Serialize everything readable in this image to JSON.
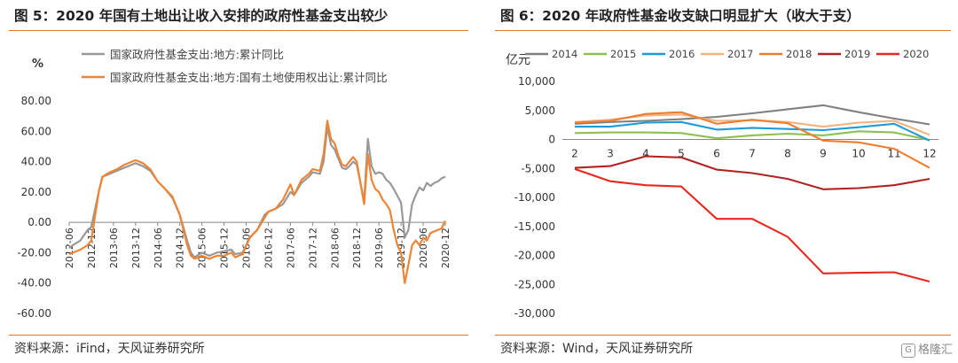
{
  "left": {
    "title": "图 5：2020 年国有土地出让收入安排的政府性基金支出较少",
    "source": "资料来源：iFind，天风证券研究所"
  },
  "right": {
    "title": "图 6：2020 年政府性基金收支缺口明显扩大（收大于支）",
    "source": "资料来源：Wind，天风证券研究所"
  },
  "watermark": {
    "text": "格隆汇",
    "icon": "G"
  },
  "chart_data": [
    {
      "type": "line",
      "unit_label": "%",
      "ylim": [
        -60,
        80
      ],
      "yticks": [
        80,
        60,
        40,
        20,
        0,
        -20,
        -40,
        -60
      ],
      "ytick_labels": [
        "80.00",
        "60.00",
        "40.00",
        "20.00",
        "0.00",
        "-20.00",
        "-40.00",
        "-60.00"
      ],
      "xlim": [
        2012.4167,
        2020.9167
      ],
      "xticks": [
        2012.4167,
        2012.9167,
        2013.4167,
        2013.9167,
        2014.4167,
        2014.9167,
        2015.4167,
        2015.9167,
        2016.4167,
        2016.9167,
        2017.4167,
        2017.9167,
        2018.4167,
        2018.9167,
        2019.4167,
        2019.9167,
        2020.4167,
        2020.9167
      ],
      "xtick_labels": [
        "2012-06",
        "2012-12",
        "2013-06",
        "2013-12",
        "2014-06",
        "2014-12",
        "2015-06",
        "2015-12",
        "2016-06",
        "2016-12",
        "2017-06",
        "2017-12",
        "2018-06",
        "2018-12",
        "2019-06",
        "2019-12",
        "2020-06",
        "2020-12"
      ],
      "legend_position": "top-left",
      "series": [
        {
          "name": "国家政府性基金支出:地方:累计同比",
          "color": "#999999",
          "points": [
            [
              2012.4167,
              -17
            ],
            [
              2012.5,
              -15
            ],
            [
              2012.6667,
              -12
            ],
            [
              2012.8333,
              -5
            ],
            [
              2012.9167,
              -3
            ],
            [
              2013.0833,
              20
            ],
            [
              2013.1667,
              30
            ],
            [
              2013.3333,
              32
            ],
            [
              2013.5,
              34
            ],
            [
              2013.6667,
              36
            ],
            [
              2013.8333,
              38
            ],
            [
              2013.9167,
              39
            ],
            [
              2014.0833,
              37
            ],
            [
              2014.25,
              34
            ],
            [
              2014.4167,
              27
            ],
            [
              2014.5833,
              22
            ],
            [
              2014.75,
              16
            ],
            [
              2014.9167,
              5
            ],
            [
              2015.0833,
              -12
            ],
            [
              2015.1667,
              -20
            ],
            [
              2015.25,
              -23
            ],
            [
              2015.4167,
              -20
            ],
            [
              2015.5833,
              -22
            ],
            [
              2015.75,
              -20
            ],
            [
              2015.9167,
              -19
            ],
            [
              2016.0833,
              -18
            ],
            [
              2016.1667,
              -21
            ],
            [
              2016.3333,
              -20
            ],
            [
              2016.5,
              -10
            ],
            [
              2016.6667,
              -5
            ],
            [
              2016.8333,
              5
            ],
            [
              2016.9167,
              7
            ],
            [
              2017.0833,
              9
            ],
            [
              2017.25,
              12
            ],
            [
              2017.4167,
              20
            ],
            [
              2017.5,
              18
            ],
            [
              2017.6667,
              26
            ],
            [
              2017.8333,
              30
            ],
            [
              2017.9167,
              33
            ],
            [
              2018.0833,
              32
            ],
            [
              2018.1667,
              40
            ],
            [
              2018.25,
              63
            ],
            [
              2018.3333,
              51
            ],
            [
              2018.4167,
              48
            ],
            [
              2018.5,
              42
            ],
            [
              2018.5833,
              36
            ],
            [
              2018.6667,
              35
            ],
            [
              2018.75,
              37
            ],
            [
              2018.8333,
              40
            ],
            [
              2018.9167,
              38
            ],
            [
              2019.0833,
              14
            ],
            [
              2019.1667,
              55
            ],
            [
              2019.25,
              37
            ],
            [
              2019.3333,
              32
            ],
            [
              2019.4167,
              33
            ],
            [
              2019.5,
              32
            ],
            [
              2019.5833,
              28
            ],
            [
              2019.6667,
              26
            ],
            [
              2019.75,
              22
            ],
            [
              2019.9167,
              13
            ],
            [
              2020.0,
              -10
            ],
            [
              2020.0833,
              -5
            ],
            [
              2020.1667,
              12
            ],
            [
              2020.25,
              18
            ],
            [
              2020.3333,
              23
            ],
            [
              2020.4167,
              21
            ],
            [
              2020.5,
              26
            ],
            [
              2020.5833,
              24
            ],
            [
              2020.6667,
              26
            ],
            [
              2020.75,
              27
            ],
            [
              2020.8333,
              29
            ],
            [
              2020.9167,
              30
            ]
          ]
        },
        {
          "name": "国家政府性基金支出:地方:国有土地使用权出让:累计同比",
          "color": "#ee8434",
          "points": [
            [
              2012.4167,
              -21
            ],
            [
              2012.5,
              -20
            ],
            [
              2012.6667,
              -18
            ],
            [
              2012.8333,
              -15
            ],
            [
              2012.9167,
              -12
            ],
            [
              2013.0833,
              20
            ],
            [
              2013.1667,
              30
            ],
            [
              2013.3333,
              33
            ],
            [
              2013.5,
              35
            ],
            [
              2013.6667,
              38
            ],
            [
              2013.8333,
              40
            ],
            [
              2013.9167,
              41
            ],
            [
              2014.0833,
              39
            ],
            [
              2014.25,
              35
            ],
            [
              2014.4167,
              27
            ],
            [
              2014.5833,
              22
            ],
            [
              2014.75,
              17
            ],
            [
              2014.9167,
              5
            ],
            [
              2015.0833,
              -15
            ],
            [
              2015.1667,
              -22
            ],
            [
              2015.25,
              -24
            ],
            [
              2015.4167,
              -22
            ],
            [
              2015.5833,
              -24
            ],
            [
              2015.75,
              -22
            ],
            [
              2015.9167,
              -22
            ],
            [
              2016.0833,
              -20
            ],
            [
              2016.1667,
              -23
            ],
            [
              2016.3333,
              -21
            ],
            [
              2016.5,
              -10
            ],
            [
              2016.6667,
              -5
            ],
            [
              2016.8333,
              3
            ],
            [
              2016.9167,
              7
            ],
            [
              2017.0833,
              9
            ],
            [
              2017.25,
              15
            ],
            [
              2017.4167,
              25
            ],
            [
              2017.5,
              18
            ],
            [
              2017.6667,
              28
            ],
            [
              2017.8333,
              32
            ],
            [
              2017.9167,
              35
            ],
            [
              2018.0833,
              34
            ],
            [
              2018.1667,
              45
            ],
            [
              2018.25,
              67
            ],
            [
              2018.3333,
              55
            ],
            [
              2018.4167,
              52
            ],
            [
              2018.5,
              44
            ],
            [
              2018.5833,
              38
            ],
            [
              2018.6667,
              37
            ],
            [
              2018.75,
              40
            ],
            [
              2018.8333,
              43
            ],
            [
              2018.9167,
              40
            ],
            [
              2019.0833,
              12
            ],
            [
              2019.1667,
              45
            ],
            [
              2019.25,
              28
            ],
            [
              2019.3333,
              22
            ],
            [
              2019.4167,
              20
            ],
            [
              2019.5,
              15
            ],
            [
              2019.5833,
              12
            ],
            [
              2019.6667,
              8
            ],
            [
              2019.75,
              -5
            ],
            [
              2019.8333,
              -15
            ],
            [
              2019.9167,
              -20
            ],
            [
              2020.0,
              -40
            ],
            [
              2020.0833,
              -28
            ],
            [
              2020.1667,
              -15
            ],
            [
              2020.25,
              -12
            ],
            [
              2020.3333,
              -15
            ],
            [
              2020.4167,
              -10
            ],
            [
              2020.5,
              -12
            ],
            [
              2020.5833,
              -7
            ],
            [
              2020.6667,
              -6
            ],
            [
              2020.75,
              -5
            ],
            [
              2020.8333,
              -4
            ],
            [
              2020.9167,
              1
            ]
          ]
        }
      ]
    },
    {
      "type": "line",
      "unit_label": "亿元",
      "ylim": [
        -30000,
        10000
      ],
      "yticks": [
        10000,
        5000,
        0,
        -5000,
        -10000,
        -15000,
        -20000,
        -25000,
        -30000
      ],
      "ytick_labels": [
        "10,000",
        "5,000",
        "0",
        "-5,000",
        "-10,000",
        "-15,000",
        "-20,000",
        "-25,000",
        "-30,000"
      ],
      "categories": [
        "2",
        "3",
        "4",
        "5",
        "6",
        "7",
        "8",
        "9",
        "10",
        "11",
        "12"
      ],
      "legend_position": "top",
      "series": [
        {
          "name": "2014",
          "color": "#808080",
          "values": [
            2700,
            3000,
            3200,
            3500,
            3900,
            4500,
            5200,
            5900,
            4700,
            3600,
            2600
          ]
        },
        {
          "name": "2015",
          "color": "#8cc152",
          "values": [
            1100,
            1200,
            1200,
            1100,
            200,
            700,
            1000,
            700,
            1400,
            1200,
            -100
          ]
        },
        {
          "name": "2016",
          "color": "#1e9bd7",
          "values": [
            2200,
            2200,
            2900,
            3000,
            1700,
            2000,
            1800,
            1600,
            2100,
            2700,
            -200
          ]
        },
        {
          "name": "2017",
          "color": "#f5b27e",
          "values": [
            3000,
            3400,
            4100,
            4300,
            3200,
            3300,
            3000,
            2200,
            2900,
            3200,
            800
          ]
        },
        {
          "name": "2018",
          "color": "#ed7d31",
          "values": [
            2900,
            3200,
            4400,
            4700,
            2700,
            3400,
            2800,
            -200,
            -500,
            -1600,
            -4900
          ]
        },
        {
          "name": "2019",
          "color": "#b22222",
          "values": [
            -4900,
            -4600,
            -2900,
            -3100,
            -5200,
            -5800,
            -6800,
            -8600,
            -8400,
            -7900,
            -6800
          ]
        },
        {
          "name": "2020",
          "color": "#e8271e",
          "values": [
            -5100,
            -7200,
            -7900,
            -8100,
            -13700,
            -13700,
            -16800,
            -23100,
            -23000,
            -22900,
            -24500
          ]
        }
      ]
    }
  ]
}
